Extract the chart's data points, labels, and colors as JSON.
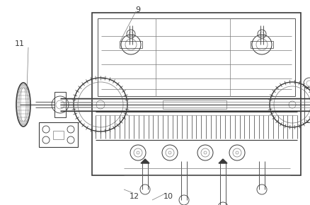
{
  "bg_color": "#ffffff",
  "line_color": "#3a3a3a",
  "gray_color": "#777777",
  "light_gray": "#aaaaaa",
  "label_9": "9",
  "label_10": "10",
  "label_11": "11",
  "label_12": "12",
  "fig_w": 4.39,
  "fig_h": 2.9,
  "dpi": 100
}
